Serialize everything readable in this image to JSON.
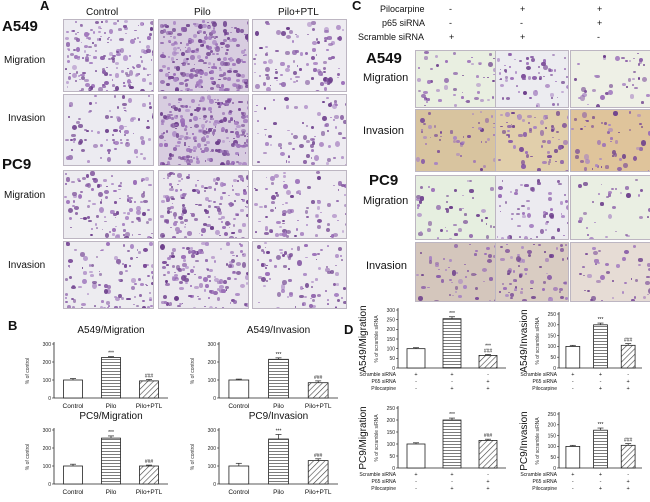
{
  "panel_A": {
    "label": "A",
    "columns": [
      "Control",
      "Pilo",
      "Pilo+PTL"
    ],
    "cells": [
      "A549",
      "PC9"
    ],
    "rows": [
      "Migration",
      "Invasion"
    ],
    "density": {
      "A549": {
        "Migration": [
          0.65,
          1.0,
          0.4
        ],
        "Invasion": [
          0.35,
          1.0,
          0.3
        ]
      },
      "PC9": {
        "Migration": [
          0.45,
          0.6,
          0.35
        ],
        "Invasion": [
          0.4,
          0.55,
          0.35
        ]
      }
    }
  },
  "panel_C": {
    "label": "C",
    "treatments": [
      {
        "name": "Pilocarpine",
        "signs": [
          "-",
          "+",
          "+"
        ]
      },
      {
        "name": "p65 siRNA",
        "signs": [
          "-",
          "-",
          "+"
        ]
      },
      {
        "name": "Scramble siRNA",
        "signs": [
          "+",
          "+",
          "-"
        ]
      }
    ],
    "cells": [
      "A549",
      "PC9"
    ],
    "rows": [
      "Migration",
      "Invasion"
    ]
  },
  "panel_B": {
    "label": "B",
    "ylabel": "% of control",
    "categories": [
      "Control",
      "Pilo",
      "Pilo+PTL"
    ]
  },
  "panel_D": {
    "label": "D",
    "ylabel": "% of scramble siRNA",
    "row_labels": [
      "Scramble siRNA",
      "P65 siRNA",
      "Pilocarpine"
    ],
    "row_signs": [
      [
        "+",
        "+",
        "-"
      ],
      [
        "-",
        "-",
        "+"
      ],
      [
        "-",
        "+",
        "+"
      ]
    ]
  },
  "chart_data": [
    {
      "type": "bar",
      "title": "A549/Migration",
      "ylabel": "% of control",
      "categories": [
        "Control",
        "Pilo",
        "Pilo+PTL"
      ],
      "values": [
        100,
        225,
        95
      ],
      "errors": [
        8,
        5,
        8
      ],
      "annotations": [
        "",
        "***",
        "###"
      ],
      "ylim": [
        0,
        300
      ],
      "ticks": [
        0,
        100,
        200,
        300
      ]
    },
    {
      "type": "bar",
      "title": "A549/Invasion",
      "ylabel": "% of control",
      "categories": [
        "Control",
        "Pilo",
        "Pilo+PTL"
      ],
      "values": [
        100,
        215,
        85
      ],
      "errors": [
        5,
        8,
        10
      ],
      "annotations": [
        "",
        "***",
        "###"
      ],
      "ylim": [
        0,
        300
      ],
      "ticks": [
        0,
        100,
        200,
        300
      ]
    },
    {
      "type": "bar",
      "title": "PC9/Migration",
      "ylabel": "% of control",
      "categories": [
        "Control",
        "Pilo",
        "Pilo+PTL"
      ],
      "values": [
        100,
        255,
        100
      ],
      "errors": [
        10,
        12,
        5
      ],
      "annotations": [
        "",
        "***",
        "###"
      ],
      "ylim": [
        0,
        300
      ],
      "ticks": [
        0,
        100,
        200,
        300
      ]
    },
    {
      "type": "bar",
      "title": "PC9/Invasion",
      "ylabel": "% of control",
      "categories": [
        "Control",
        "Pilo",
        "Pilo+PTL"
      ],
      "values": [
        100,
        250,
        130
      ],
      "errors": [
        15,
        25,
        10
      ],
      "annotations": [
        "",
        "***",
        "###"
      ],
      "ylim": [
        0,
        300
      ],
      "ticks": [
        0,
        100,
        200,
        300
      ]
    },
    {
      "type": "bar",
      "title": "A549/Migration",
      "ylabel": "% of scramble siRNA",
      "values": [
        100,
        255,
        65
      ],
      "errors": [
        5,
        10,
        5
      ],
      "annotations": [
        "",
        "***",
        "***\n###"
      ],
      "ylim": [
        0,
        300
      ],
      "ticks": [
        0,
        50,
        100,
        150,
        200,
        250,
        300
      ]
    },
    {
      "type": "bar",
      "title": "A549/Invasion",
      "ylabel": "% of scramble siRNA",
      "values": [
        100,
        200,
        105
      ],
      "errors": [
        5,
        8,
        8
      ],
      "annotations": [
        "",
        "***",
        "###"
      ],
      "ylim": [
        0,
        250
      ],
      "ticks": [
        0,
        50,
        100,
        150,
        200,
        250
      ]
    },
    {
      "type": "bar",
      "title": "PC9/Migration",
      "ylabel": "% of scramble siRNA",
      "values": [
        100,
        200,
        115
      ],
      "errors": [
        5,
        8,
        5
      ],
      "annotations": [
        "",
        "***",
        "###"
      ],
      "ylim": [
        0,
        250
      ],
      "ticks": [
        0,
        50,
        100,
        150,
        200,
        250
      ]
    },
    {
      "type": "bar",
      "title": "PC9/Invasion",
      "ylabel": "% of scramble siRNA",
      "values": [
        100,
        175,
        105
      ],
      "errors": [
        5,
        10,
        8
      ],
      "annotations": [
        "",
        "***",
        "###"
      ],
      "ylim": [
        0,
        250
      ],
      "ticks": [
        0,
        50,
        100,
        150,
        200,
        250
      ]
    }
  ]
}
